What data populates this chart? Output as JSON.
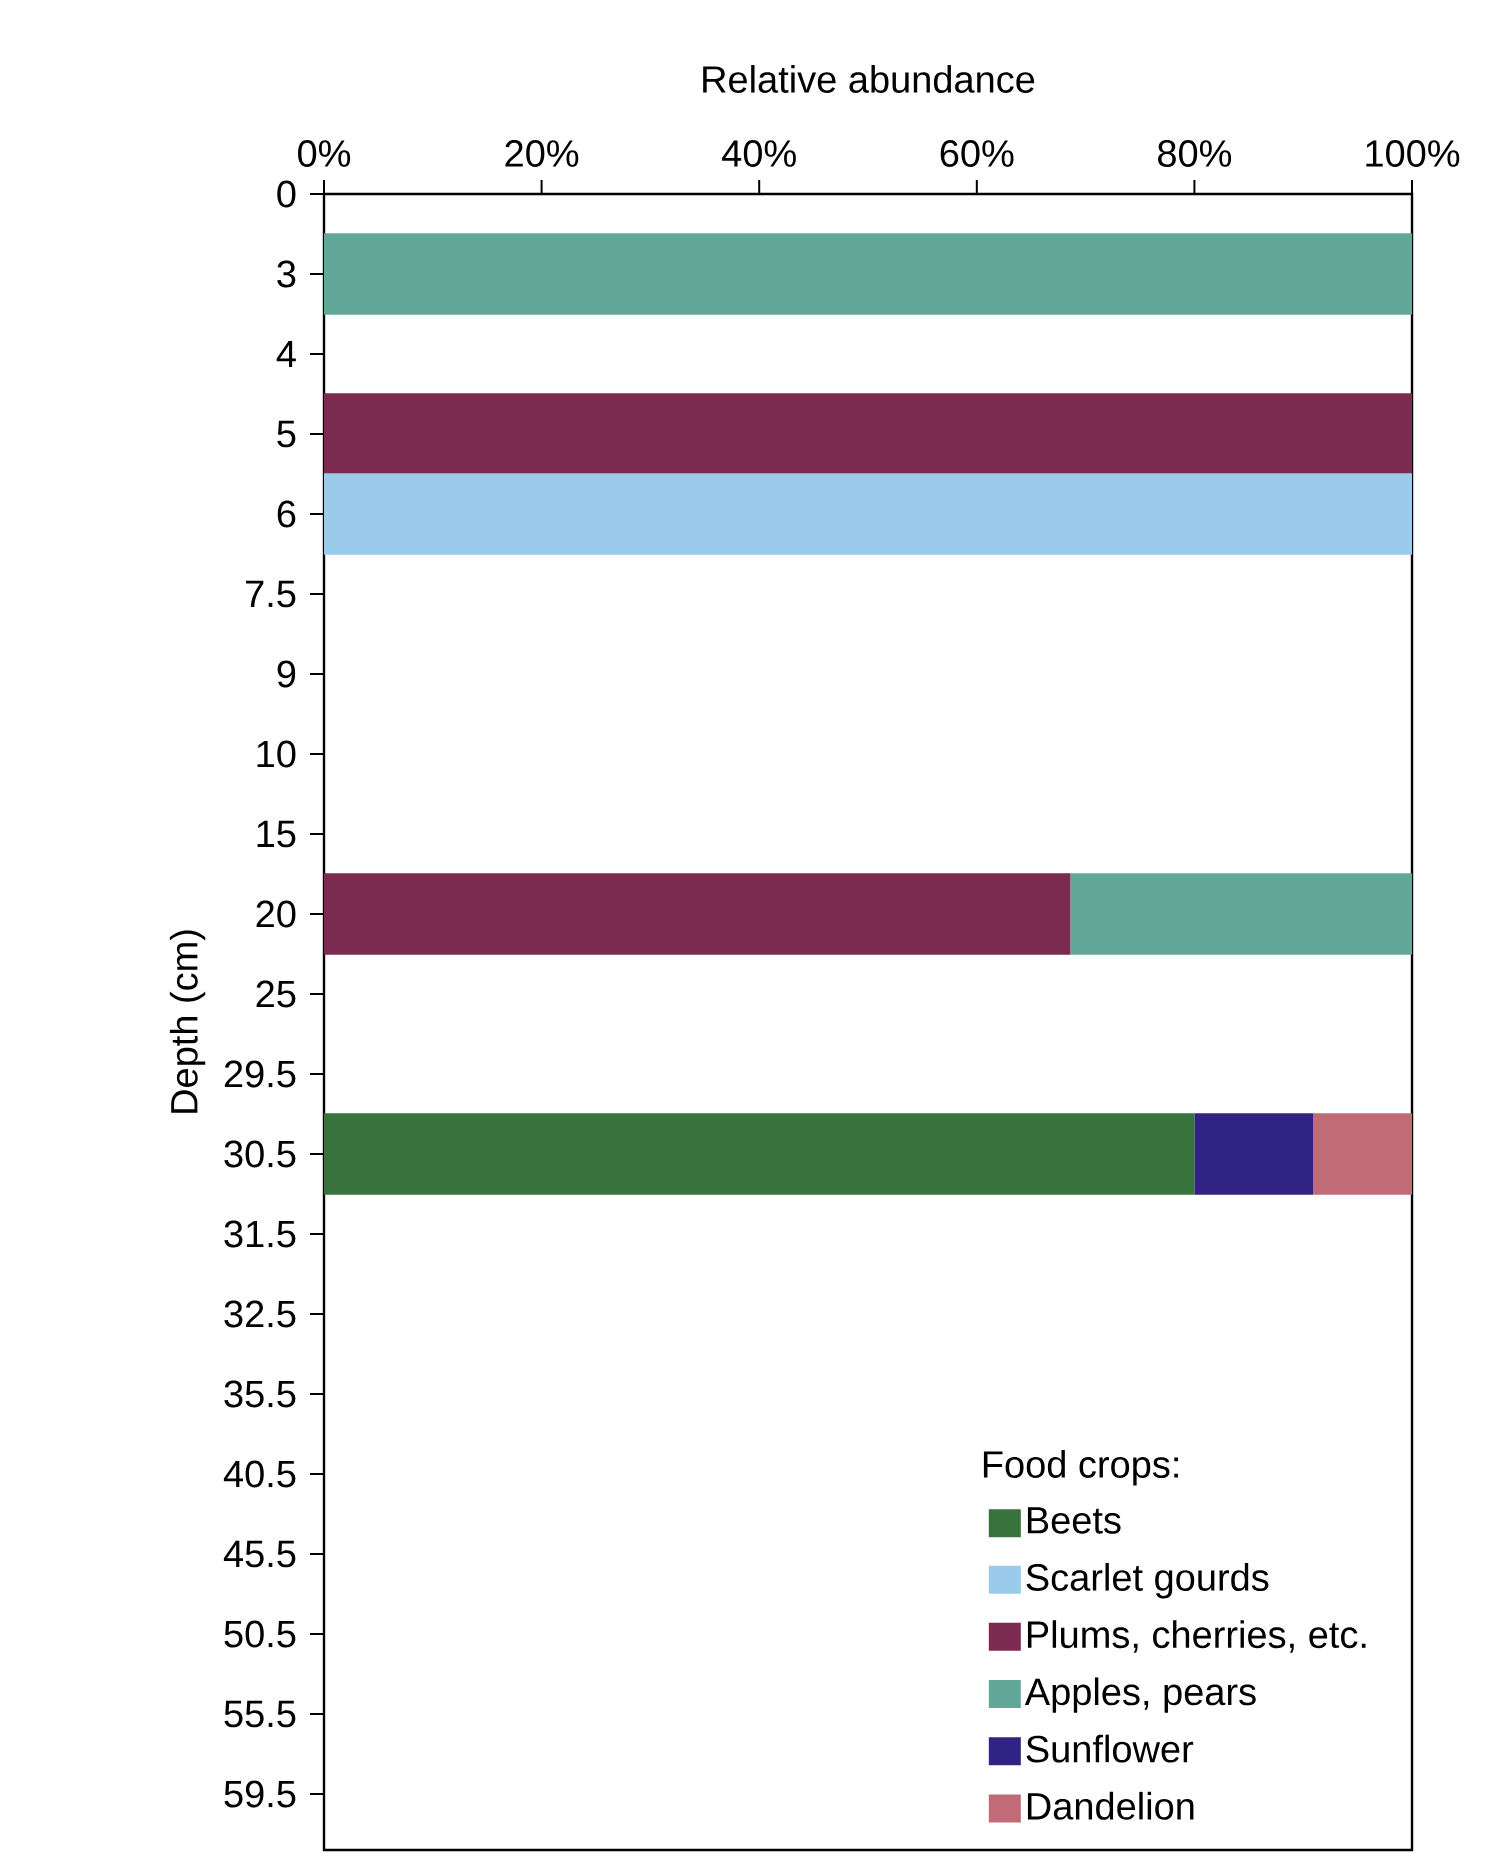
{
  "chart_data": {
    "type": "bar",
    "orientation": "horizontal",
    "stacked": true,
    "xlabel": "Relative abundance",
    "ylabel": "Depth (cm)",
    "legend_title": "Food crops:",
    "categories": [
      "0",
      "3",
      "4",
      "5",
      "6",
      "7.5",
      "9",
      "10",
      "15",
      "20",
      "25",
      "29.5",
      "30.5",
      "31.5",
      "32.5",
      "35.5",
      "40.5",
      "45.5",
      "50.5",
      "55.5",
      "59.5"
    ],
    "series": [
      {
        "name": "Beets",
        "color": "#38733b",
        "values": [
          null,
          null,
          null,
          null,
          null,
          null,
          null,
          null,
          null,
          null,
          null,
          null,
          80.0,
          null,
          null,
          null,
          null,
          null,
          null,
          null,
          null
        ]
      },
      {
        "name": "Scarlet gourds",
        "color": "#9bcbeb",
        "values": [
          null,
          null,
          null,
          null,
          100,
          null,
          null,
          null,
          null,
          null,
          null,
          null,
          null,
          null,
          null,
          null,
          null,
          null,
          null,
          null,
          null
        ]
      },
      {
        "name": "Plums, cherries, etc.",
        "color": "#7b2a52",
        "values": [
          null,
          null,
          null,
          100,
          null,
          null,
          null,
          null,
          null,
          68.6,
          null,
          null,
          null,
          null,
          null,
          null,
          null,
          null,
          null,
          null,
          null
        ]
      },
      {
        "name": "Apples, pears",
        "color": "#61a899",
        "values": [
          null,
          100,
          null,
          null,
          null,
          null,
          null,
          null,
          null,
          31.4,
          null,
          null,
          null,
          null,
          null,
          null,
          null,
          null,
          null,
          null,
          null
        ]
      },
      {
        "name": "Sunflower",
        "color": "#312383",
        "values": [
          null,
          null,
          null,
          null,
          null,
          null,
          null,
          null,
          null,
          null,
          null,
          null,
          10.9,
          null,
          null,
          null,
          null,
          null,
          null,
          null,
          null
        ]
      },
      {
        "name": "Dandelion",
        "color": "#c06b77",
        "values": [
          null,
          null,
          null,
          null,
          null,
          null,
          null,
          null,
          null,
          null,
          null,
          null,
          9.1,
          null,
          null,
          null,
          null,
          null,
          null,
          null,
          null
        ]
      }
    ],
    "xlim": [
      0,
      100
    ],
    "xticks": [
      {
        "value": 0,
        "label": "0%"
      },
      {
        "value": 20,
        "label": "20%"
      },
      {
        "value": 40,
        "label": "40%"
      },
      {
        "value": 60,
        "label": "60%"
      },
      {
        "value": 80,
        "label": "80%"
      },
      {
        "value": 100,
        "label": "100%"
      }
    ],
    "grid": false,
    "legend": "bottom right"
  }
}
